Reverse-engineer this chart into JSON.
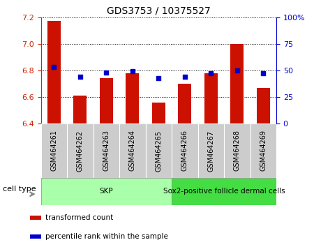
{
  "title": "GDS3753 / 10375527",
  "samples": [
    "GSM464261",
    "GSM464262",
    "GSM464263",
    "GSM464264",
    "GSM464265",
    "GSM464266",
    "GSM464267",
    "GSM464268",
    "GSM464269"
  ],
  "transformed_counts": [
    7.17,
    6.61,
    6.74,
    6.78,
    6.56,
    6.7,
    6.78,
    7.0,
    6.67
  ],
  "percentile_ranks": [
    53,
    44,
    48,
    49,
    43,
    44,
    47,
    50,
    47
  ],
  "ylim_left": [
    6.4,
    7.2
  ],
  "yticks_left": [
    6.4,
    6.6,
    6.8,
    7.0,
    7.2
  ],
  "ylim_right": [
    0,
    100
  ],
  "yticks_right": [
    0,
    25,
    50,
    75,
    100
  ],
  "yticklabels_right": [
    "0",
    "25",
    "50",
    "75",
    "100%"
  ],
  "bar_color": "#cc1100",
  "dot_color": "#0000cc",
  "cell_types": [
    {
      "label": "SKP",
      "indices": [
        0,
        1,
        2,
        3,
        4
      ],
      "color": "#aaffaa"
    },
    {
      "label": "Sox2-positive follicle dermal cells",
      "indices": [
        5,
        6,
        7,
        8
      ],
      "color": "#44dd44"
    }
  ],
  "cell_type_label": "cell type",
  "legend_items": [
    {
      "color": "#cc1100",
      "label": "transformed count"
    },
    {
      "color": "#0000cc",
      "label": "percentile rank within the sample"
    }
  ],
  "grid_color": "black",
  "bg_color": "#ffffff",
  "bar_width": 0.5,
  "dot_size": 22,
  "tick_bg_color": "#cccccc"
}
